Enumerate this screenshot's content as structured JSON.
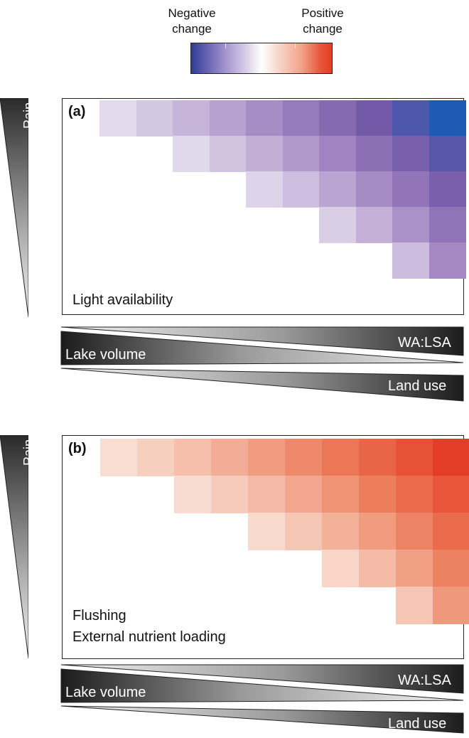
{
  "legend": {
    "negative_label": "Negative change",
    "positive_label": "Positive change",
    "colors": {
      "negative": "#2d3c97",
      "neutral": "#ffffff",
      "positive": "#e43d27"
    }
  },
  "panels": [
    {
      "id": "a",
      "letter": "(a)",
      "caption_lines": [
        "Light availability"
      ],
      "direction": "negative",
      "rain_label": "Rain",
      "grid": {
        "columns": 10,
        "rows": 5
      }
    },
    {
      "id": "b",
      "letter": "(b)",
      "caption_lines": [
        "Flushing",
        "External nutrient loading"
      ],
      "direction": "positive",
      "rain_label": "Rain",
      "grid": {
        "columns": 10,
        "rows": 5
      }
    }
  ],
  "axis_bars": {
    "top_label": "WA:LSA",
    "middle_label": "Lake volume",
    "bottom_label": "Land use"
  }
}
